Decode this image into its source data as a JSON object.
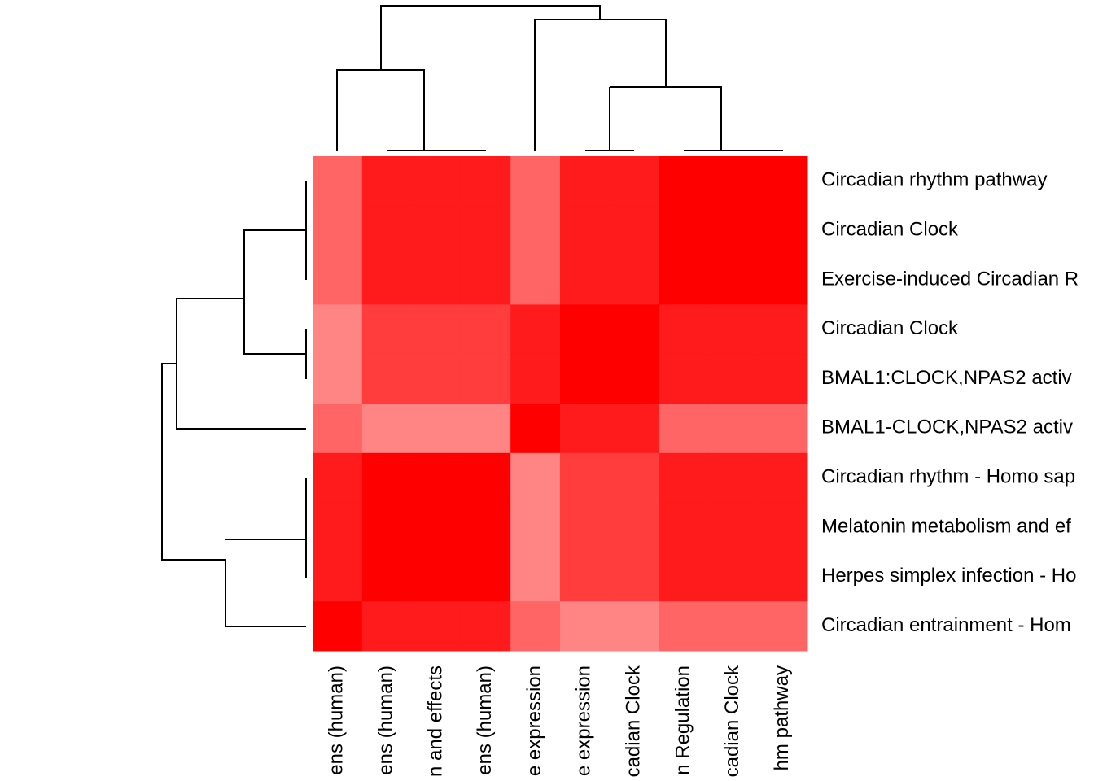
{
  "chart_data": {
    "type": "heatmap",
    "rows": [
      "Circadian rhythm pathway",
      "Circadian Clock",
      "Exercise-induced Circadian R",
      "Circadian Clock",
      "BMAL1:CLOCK,NPAS2 activ",
      "BMAL1-CLOCK,NPAS2 activ",
      "Circadian rhythm - Homo sap",
      "Melatonin metabolism and ef",
      "Herpes simplex infection - Ho",
      "Circadian entrainment - Hom"
    ],
    "columns": [
      "ens (human)",
      "ens (human)",
      "n and effects",
      "ens (human)",
      "e expression",
      "e expression",
      "cadian Clock",
      "n Regulation",
      "cadian Clock",
      "hm pathway"
    ],
    "values": [
      [
        0.62,
        0.9,
        0.9,
        0.9,
        0.62,
        0.9,
        0.9,
        1,
        1,
        1
      ],
      [
        0.62,
        0.9,
        0.9,
        0.9,
        0.62,
        0.9,
        0.9,
        1,
        1,
        1
      ],
      [
        0.62,
        0.9,
        0.9,
        0.9,
        0.62,
        0.9,
        0.9,
        1,
        1,
        1
      ],
      [
        0.5,
        0.77,
        0.77,
        0.77,
        0.9,
        1,
        1,
        0.9,
        0.9,
        0.9
      ],
      [
        0.5,
        0.77,
        0.77,
        0.77,
        0.9,
        1,
        1,
        0.9,
        0.9,
        0.9
      ],
      [
        0.62,
        0.5,
        0.5,
        0.5,
        1,
        0.9,
        0.9,
        0.62,
        0.62,
        0.62
      ],
      [
        0.9,
        1,
        1,
        1,
        0.5,
        0.77,
        0.77,
        0.9,
        0.9,
        0.9
      ],
      [
        0.9,
        1,
        1,
        1,
        0.5,
        0.77,
        0.77,
        0.9,
        0.9,
        0.9
      ],
      [
        0.9,
        1,
        1,
        1,
        0.5,
        0.77,
        0.77,
        0.9,
        0.9,
        0.9
      ],
      [
        1,
        0.9,
        0.9,
        0.9,
        0.62,
        0.5,
        0.5,
        0.62,
        0.62,
        0.62
      ]
    ],
    "vlim": [
      0.5,
      1
    ],
    "colors": [
      "#ff8585",
      "#ff0000"
    ]
  }
}
